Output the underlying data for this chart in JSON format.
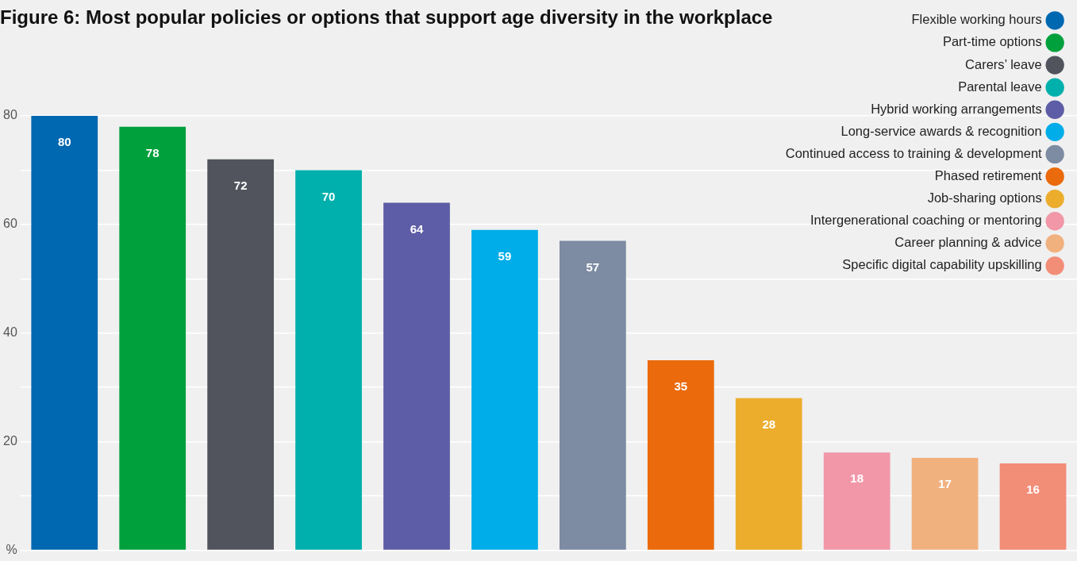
{
  "chart_data": {
    "type": "bar",
    "title": "Figure 6: Most popular policies or options that support age diversity in the workplace",
    "categories": [
      null,
      null,
      null,
      null,
      null,
      null,
      null,
      null,
      null,
      null,
      null,
      null
    ],
    "series": [
      {
        "name": "Flexible working hours",
        "color": "#0067b1",
        "values": [
          80,
          null,
          null,
          null,
          null,
          null,
          null,
          null,
          null,
          null,
          null,
          null
        ]
      },
      {
        "name": "Part-time options",
        "color": "#00a03c",
        "values": [
          null,
          78,
          null,
          null,
          null,
          null,
          null,
          null,
          null,
          null,
          null,
          null
        ]
      },
      {
        "name": "Carers’ leave",
        "color": "#51545c",
        "values": [
          null,
          null,
          72,
          null,
          null,
          null,
          null,
          null,
          null,
          null,
          null,
          null
        ]
      },
      {
        "name": "Parental leave",
        "color": "#00b0ac",
        "values": [
          null,
          null,
          null,
          70,
          null,
          null,
          null,
          null,
          null,
          null,
          null,
          null
        ]
      },
      {
        "name": "Hybrid working arrangements",
        "color": "#5d5ca6",
        "values": [
          null,
          null,
          null,
          null,
          64,
          null,
          null,
          null,
          null,
          null,
          null,
          null
        ]
      },
      {
        "name": "Long-service awards & recognition",
        "color": "#00ade8",
        "values": [
          null,
          null,
          null,
          null,
          null,
          59,
          null,
          null,
          null,
          null,
          null,
          null
        ]
      },
      {
        "name": "Continued access to training & development",
        "color": "#7d8ba3",
        "values": [
          null,
          null,
          null,
          null,
          null,
          null,
          57,
          null,
          null,
          null,
          null,
          null
        ]
      },
      {
        "name": "Phased retirement",
        "color": "#ea6a0c",
        "values": [
          null,
          null,
          null,
          null,
          null,
          null,
          null,
          35,
          null,
          null,
          null,
          null
        ]
      },
      {
        "name": "Job-sharing options",
        "color": "#ecad2d",
        "values": [
          null,
          null,
          null,
          null,
          null,
          null,
          null,
          null,
          28,
          null,
          null,
          null
        ]
      },
      {
        "name": "Intergenerational coaching or mentoring",
        "color": "#f197a8",
        "values": [
          null,
          null,
          null,
          null,
          null,
          null,
          null,
          null,
          null,
          18,
          null,
          null
        ]
      },
      {
        "name": "Career planning & advice",
        "color": "#f1b17f",
        "values": [
          null,
          null,
          null,
          null,
          null,
          null,
          null,
          null,
          null,
          null,
          17,
          null
        ]
      },
      {
        "name": "Specific digital capability upskilling",
        "color": "#f28d78",
        "values": [
          null,
          null,
          null,
          null,
          null,
          null,
          null,
          null,
          null,
          null,
          null,
          16
        ]
      }
    ],
    "ylim": [
      0,
      80
    ],
    "yticks": [
      {
        "value": 0,
        "label": "%"
      },
      {
        "value": 10,
        "label": null
      },
      20,
      {
        "value": 30,
        "label": null
      },
      40,
      {
        "value": 50,
        "label": null
      },
      60,
      {
        "value": 70,
        "label": null
      },
      80
    ],
    "grid": "y",
    "legend": "top right",
    "tick_labels": "y",
    "data_labels": true
  }
}
